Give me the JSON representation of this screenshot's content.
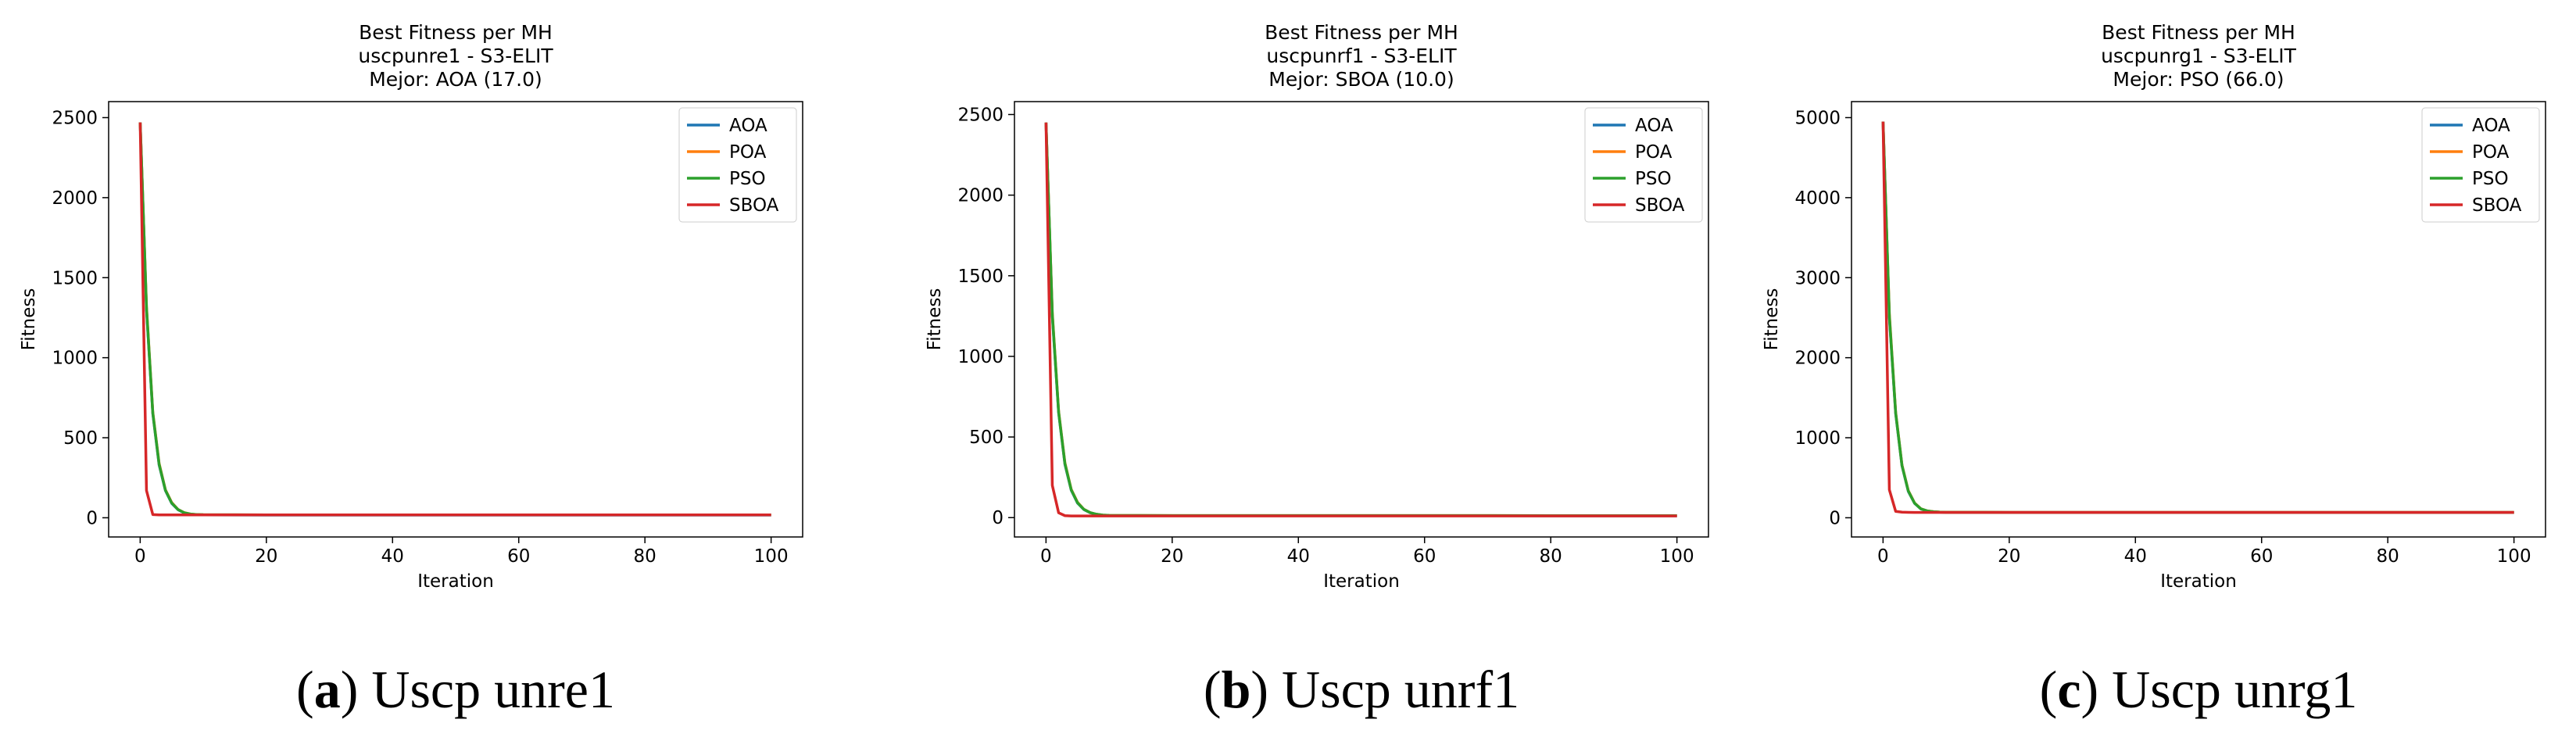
{
  "chart_data": [
    {
      "type": "line",
      "title": "Best Fitness per MH",
      "subtitle": "uscpunre1 - S3-ELIT",
      "annotation": "Mejor: AOA (17.0)",
      "x_label": "Iteration",
      "y_label": "Fitness",
      "caption_label": "a",
      "caption": "Uscp unre1",
      "x": [
        0,
        1,
        2,
        3,
        4,
        5,
        6,
        7,
        8,
        9,
        10,
        20,
        30,
        40,
        50,
        60,
        70,
        80,
        90,
        100
      ],
      "series": [
        {
          "name": "AOA",
          "color": "#1f77b4",
          "values": [
            2470,
            1300,
            650,
            330,
            170,
            90,
            50,
            30,
            22,
            19,
            18,
            17,
            17,
            17,
            17,
            17,
            17,
            17,
            17,
            17
          ]
        },
        {
          "name": "POA",
          "color": "#ff7f0e",
          "values": [
            2470,
            1320,
            660,
            340,
            175,
            95,
            52,
            32,
            23,
            20,
            19,
            18,
            18,
            18,
            18,
            18,
            18,
            18,
            18,
            18
          ]
        },
        {
          "name": "PSO",
          "color": "#2ca02c",
          "values": [
            2470,
            1310,
            655,
            335,
            172,
            92,
            51,
            31,
            23,
            20,
            19,
            18,
            18,
            18,
            18,
            18,
            18,
            18,
            18,
            18
          ]
        },
        {
          "name": "SBOA",
          "color": "#d62728",
          "values": [
            2470,
            170,
            20,
            18,
            18,
            18,
            18,
            18,
            18,
            18,
            18,
            18,
            18,
            18,
            18,
            18,
            18,
            18,
            18,
            18
          ]
        }
      ],
      "xlim": [
        -5,
        105
      ],
      "xticks": [
        0,
        20,
        40,
        60,
        80,
        100
      ],
      "ylim": [
        -120,
        2600
      ],
      "yticks": [
        0,
        500,
        1000,
        1500,
        2000,
        2500
      ],
      "legend": "upper right"
    },
    {
      "type": "line",
      "title": "Best Fitness per MH",
      "subtitle": "uscpunrf1 - S3-ELIT",
      "annotation": "Mejor: SBOA (10.0)",
      "x_label": "Iteration",
      "y_label": "Fitness",
      "caption_label": "b",
      "caption": "Uscp unrf1",
      "x": [
        0,
        1,
        2,
        3,
        4,
        5,
        6,
        7,
        8,
        9,
        10,
        20,
        30,
        40,
        50,
        60,
        70,
        80,
        90,
        100
      ],
      "series": [
        {
          "name": "AOA",
          "color": "#1f77b4",
          "values": [
            2450,
            1250,
            650,
            330,
            170,
            90,
            50,
            30,
            20,
            15,
            13,
            12,
            12,
            12,
            12,
            12,
            12,
            11,
            11,
            11
          ]
        },
        {
          "name": "POA",
          "color": "#ff7f0e",
          "values": [
            2450,
            1270,
            660,
            340,
            175,
            95,
            52,
            31,
            21,
            16,
            14,
            13,
            13,
            13,
            13,
            13,
            13,
            12,
            12,
            12
          ]
        },
        {
          "name": "PSO",
          "color": "#2ca02c",
          "values": [
            2450,
            1260,
            655,
            335,
            172,
            92,
            51,
            31,
            21,
            16,
            14,
            13,
            13,
            13,
            13,
            13,
            13,
            12,
            12,
            12
          ]
        },
        {
          "name": "SBOA",
          "color": "#d62728",
          "values": [
            2450,
            200,
            30,
            12,
            10,
            10,
            10,
            10,
            10,
            10,
            10,
            10,
            10,
            10,
            10,
            10,
            10,
            10,
            10,
            10
          ]
        }
      ],
      "xlim": [
        -5,
        105
      ],
      "xticks": [
        0,
        20,
        40,
        60,
        80,
        100
      ],
      "ylim": [
        -120,
        2580
      ],
      "yticks": [
        0,
        500,
        1000,
        1500,
        2000,
        2500
      ],
      "legend": "upper right"
    },
    {
      "type": "line",
      "title": "Best Fitness per MH",
      "subtitle": "uscpunrg1 - S3-ELIT",
      "annotation": "Mejor: PSO (66.0)",
      "x_label": "Iteration",
      "y_label": "Fitness",
      "caption_label": "c",
      "caption": "Uscp unrg1",
      "x": [
        0,
        1,
        2,
        3,
        4,
        5,
        6,
        7,
        8,
        9,
        10,
        20,
        30,
        40,
        50,
        60,
        70,
        80,
        90,
        100
      ],
      "series": [
        {
          "name": "AOA",
          "color": "#1f77b4",
          "values": [
            4950,
            2500,
            1300,
            650,
            330,
            180,
            110,
            85,
            75,
            70,
            68,
            67,
            67,
            67,
            67,
            67,
            67,
            67,
            67,
            67
          ]
        },
        {
          "name": "POA",
          "color": "#ff7f0e",
          "values": [
            4950,
            2550,
            1320,
            660,
            340,
            185,
            112,
            86,
            76,
            71,
            69,
            68,
            68,
            68,
            68,
            68,
            68,
            68,
            68,
            68
          ]
        },
        {
          "name": "PSO",
          "color": "#2ca02c",
          "values": [
            4950,
            2520,
            1310,
            655,
            335,
            182,
            111,
            85,
            75,
            70,
            68,
            67,
            66,
            66,
            66,
            66,
            66,
            66,
            66,
            66
          ]
        },
        {
          "name": "SBOA",
          "color": "#d62728",
          "values": [
            4950,
            350,
            80,
            70,
            68,
            67,
            67,
            67,
            67,
            67,
            67,
            67,
            67,
            67,
            67,
            67,
            67,
            67,
            67,
            67
          ]
        }
      ],
      "xlim": [
        -5,
        105
      ],
      "xticks": [
        0,
        20,
        40,
        60,
        80,
        100
      ],
      "ylim": [
        -240,
        5200
      ],
      "yticks": [
        0,
        1000,
        2000,
        3000,
        4000,
        5000
      ],
      "legend": "upper right"
    }
  ]
}
